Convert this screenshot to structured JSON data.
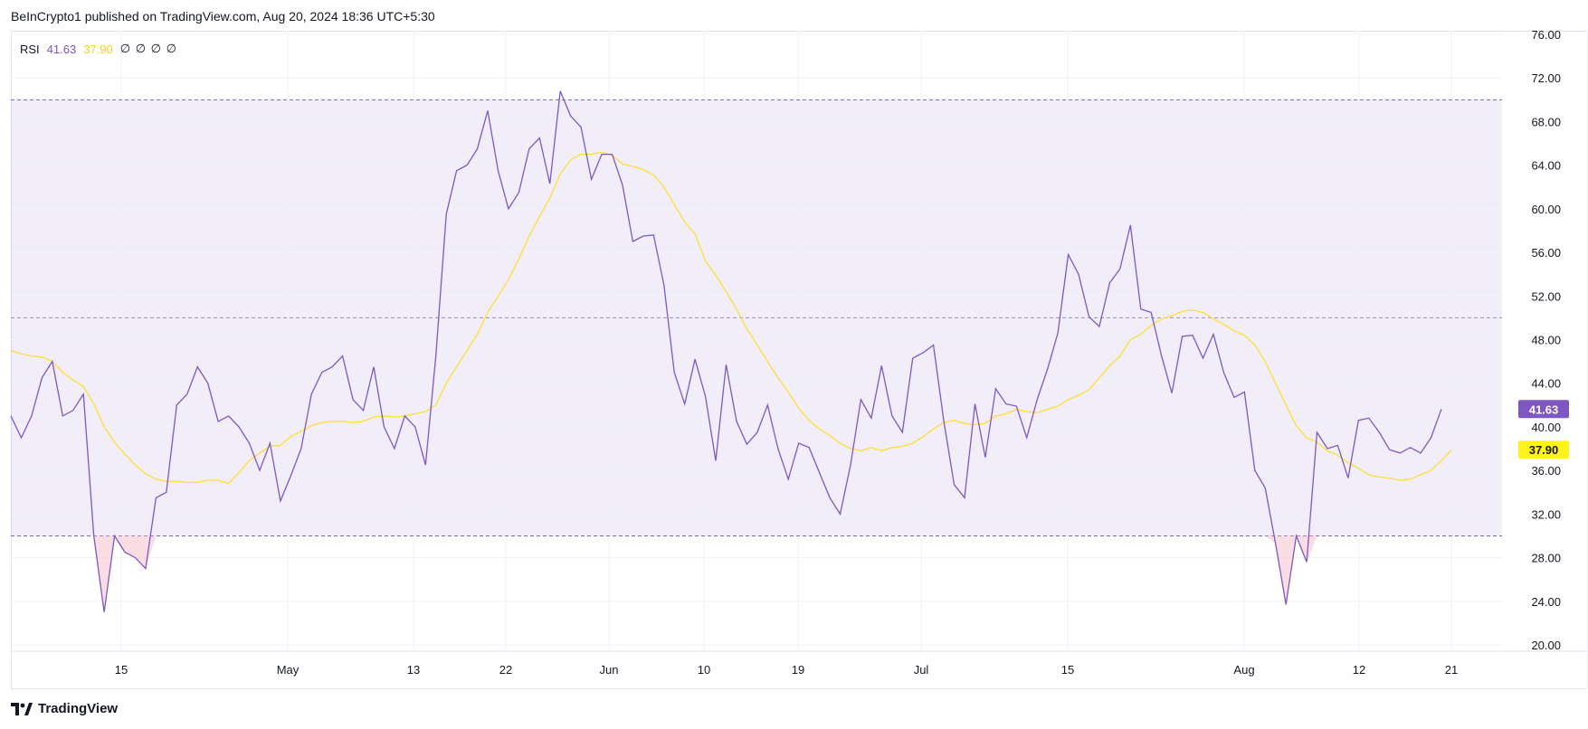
{
  "header": {
    "publisher": "BeInCrypto1 published on TradingView.com, Aug 20, 2024 18:36 UTC+5:30"
  },
  "legend": {
    "name": "RSI",
    "rsi_value": "41.63",
    "ma_value": "37.90",
    "na_values": "∅ ∅ ∅ ∅"
  },
  "footer": {
    "brand": "TradingView"
  },
  "colors": {
    "rsi": "#7e57c2",
    "ma": "#fddd36",
    "band": "#7e57c2",
    "price_badge_rsi": "#7e57c2",
    "price_badge_ma": "#fff41a"
  },
  "chart_data": {
    "type": "line",
    "title": "RSI",
    "ylim": [
      18,
      77
    ],
    "y_ticks": [
      "76.00",
      "72.00",
      "68.00",
      "64.00",
      "60.00",
      "56.00",
      "52.00",
      "48.00",
      "44.00",
      "40.00",
      "36.00",
      "32.00",
      "28.00",
      "24.00",
      "20.00"
    ],
    "x_ticks": [
      "15",
      "May",
      "13",
      "22",
      "Jun",
      "10",
      "19",
      "Jul",
      "15",
      "Aug",
      "12",
      "21"
    ],
    "levels": {
      "upper": 70,
      "middle": 50,
      "lower": 30
    },
    "last_values": {
      "rsi": "41.63",
      "ma": "37.90"
    },
    "series": [
      {
        "name": "RSI",
        "values": [
          41,
          39,
          41,
          44.5,
          46,
          41,
          41.5,
          43,
          30,
          23,
          30,
          28.5,
          28,
          27,
          33.5,
          34,
          42,
          43,
          45.5,
          44,
          40.5,
          41,
          40,
          38.5,
          36,
          38.5,
          33.2,
          35.5,
          38,
          43,
          45,
          45.5,
          46.5,
          42.5,
          41.5,
          45.5,
          40,
          38,
          41,
          40,
          36.5,
          46.5,
          59.5,
          63.5,
          64,
          65.5,
          69,
          63.5,
          60,
          61.5,
          65.5,
          66.5,
          62.3,
          70.8,
          68.5,
          67.5,
          62.7,
          65,
          65,
          62.2,
          57,
          57.5,
          57.6,
          53,
          45,
          42.1,
          46.2,
          42.8,
          36.9,
          45.7,
          40.5,
          38.4,
          39.5,
          42,
          38,
          35.2,
          38.5,
          38.1,
          35.8,
          33.5,
          32,
          36.5,
          42.5,
          40.8,
          45.6,
          41,
          39.5,
          46.3,
          46.8,
          47.5,
          40.5,
          34.7,
          33.5,
          42.1,
          37.2,
          43.5,
          42.1,
          41.9,
          39,
          42.5,
          45.3,
          48.6,
          55.8,
          54,
          50.1,
          49.2,
          53.2,
          54.5,
          58.5,
          50.8,
          50.5,
          46.5,
          43.1,
          48.3,
          48.4,
          46.3,
          48.5,
          45,
          42.7,
          43.2,
          36,
          34.4,
          29.3,
          23.7,
          30,
          27.6,
          39.5,
          38,
          38.3,
          35.3,
          40.6,
          40.8,
          39.5,
          37.9,
          37.6,
          38.1,
          37.6,
          39,
          41.63
        ]
      },
      {
        "name": "MA",
        "values": [
          47,
          46.7,
          46.5,
          46.4,
          46,
          45,
          44.3,
          43.7,
          42.1,
          40,
          38.6,
          37.5,
          36.5,
          35.7,
          35.2,
          35,
          35,
          34.9,
          34.9,
          35.1,
          35.1,
          34.8,
          35.8,
          36.9,
          37.6,
          38.2,
          38.3,
          39.1,
          39.6,
          40.1,
          40.4,
          40.5,
          40.5,
          40.4,
          40.5,
          40.9,
          41,
          40.9,
          41,
          41.2,
          41.4,
          42,
          44,
          45.5,
          47,
          48.5,
          50.5,
          52,
          53.5,
          55.4,
          57.5,
          59.3,
          61,
          63.2,
          64.5,
          65,
          65,
          65.2,
          64.9,
          64.1,
          63.9,
          63.6,
          63.1,
          62,
          60.4,
          58.8,
          57.7,
          55.2,
          53.9,
          52.4,
          50.8,
          49,
          47.5,
          46,
          44.5,
          43.2,
          41.7,
          40.6,
          39.8,
          39.2,
          38.5,
          38,
          37.8,
          38.1,
          37.8,
          38.1,
          38.2,
          38.5,
          39.1,
          39.8,
          40.4,
          40.6,
          40.3,
          40.2,
          40.3,
          41,
          41.2,
          41.6,
          41.4,
          41.3,
          41.6,
          41.9,
          42.5,
          42.9,
          43.4,
          44.5,
          45.6,
          46.5,
          48,
          48.5,
          49.3,
          49.9,
          50.2,
          50.6,
          50.7,
          50.5,
          49.9,
          49.4,
          48.8,
          48.4,
          47.5,
          46,
          44,
          42,
          40.1,
          39,
          38.6,
          37.8,
          37.4,
          36.7,
          36.2,
          35.6,
          35.4,
          35.3,
          35.1,
          35.2,
          35.6,
          36,
          36.9,
          37.9
        ]
      }
    ]
  }
}
